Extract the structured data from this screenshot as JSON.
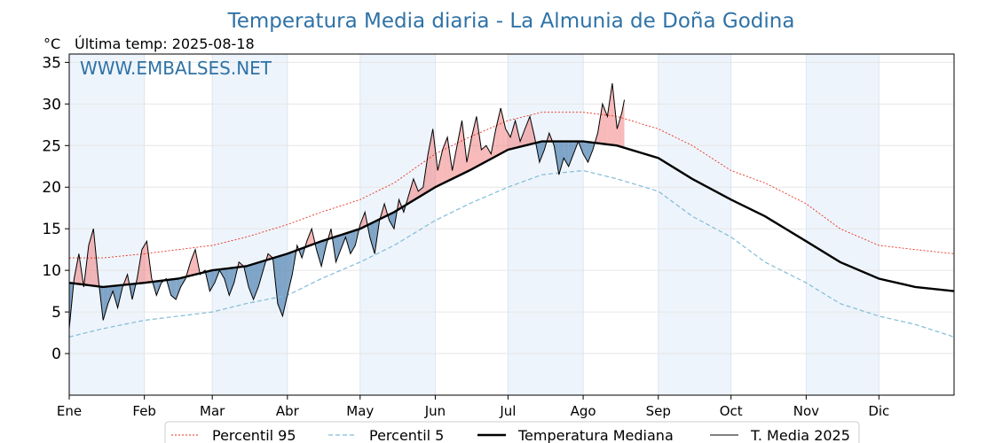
{
  "chart_data": {
    "type": "line",
    "title": "Temperatura Media diaria - La Almunia de Doña Godina",
    "unit_label": "°C",
    "last_temp_label": "Última temp: 2025-08-18",
    "watermark": "WWW.EMBALSES.NET",
    "ylim": [
      -5,
      36
    ],
    "yticks": [
      0,
      5,
      10,
      15,
      20,
      25,
      30,
      35
    ],
    "xlim": [
      1,
      366
    ],
    "month_labels": [
      "Ene",
      "Feb",
      "Mar",
      "Abr",
      "May",
      "Jun",
      "Jul",
      "Ago",
      "Sep",
      "Oct",
      "Nov",
      "Dic"
    ],
    "month_starts": [
      1,
      32,
      60,
      91,
      121,
      152,
      182,
      213,
      244,
      274,
      305,
      335
    ],
    "grid": true,
    "legend_position": "bottom",
    "colors": {
      "p95": "#e8321f",
      "p5": "#7fbcd8",
      "median": "#000000",
      "current": "#000000",
      "above": "#f08080",
      "below": "#4f81b0",
      "title": "#2f72a6",
      "band": "#eef4fb"
    },
    "x_day_of_year": [
      1,
      15,
      32,
      46,
      60,
      74,
      91,
      105,
      121,
      135,
      152,
      166,
      182,
      196,
      213,
      227,
      244,
      258,
      274,
      288,
      305,
      319,
      335,
      350,
      366
    ],
    "series": [
      {
        "name": "Percentil 95",
        "key": "p95",
        "values": [
          11.5,
          11.5,
          12.0,
          12.5,
          13.0,
          14.0,
          15.5,
          17.0,
          18.5,
          20.5,
          24.0,
          26.0,
          28.0,
          29.0,
          29.0,
          28.5,
          27.0,
          25.0,
          22.0,
          20.5,
          18.0,
          15.0,
          13.0,
          12.5,
          12.0
        ]
      },
      {
        "name": "Percentil 5",
        "key": "p5",
        "values": [
          2.0,
          3.0,
          4.0,
          4.5,
          5.0,
          6.0,
          7.0,
          9.0,
          11.0,
          13.0,
          16.0,
          18.0,
          20.0,
          21.5,
          22.0,
          21.0,
          19.5,
          16.5,
          14.0,
          11.0,
          8.5,
          6.0,
          4.5,
          3.5,
          2.0
        ]
      },
      {
        "name": "Temperatura Mediana",
        "key": "median",
        "values": [
          8.5,
          8.0,
          8.5,
          9.0,
          10.0,
          10.5,
          12.0,
          13.5,
          15.0,
          17.0,
          20.0,
          22.0,
          24.5,
          25.5,
          25.5,
          25.0,
          23.5,
          21.0,
          18.5,
          16.5,
          13.5,
          11.0,
          9.0,
          8.0,
          7.5
        ]
      },
      {
        "name": "T. Media 2025",
        "key": "current",
        "x": [
          1,
          3,
          5,
          7,
          9,
          11,
          13,
          15,
          17,
          19,
          21,
          23,
          25,
          27,
          29,
          31,
          33,
          35,
          37,
          39,
          41,
          43,
          45,
          47,
          49,
          51,
          53,
          55,
          57,
          59,
          61,
          63,
          65,
          67,
          69,
          71,
          73,
          75,
          77,
          79,
          81,
          83,
          85,
          87,
          89,
          91,
          93,
          95,
          97,
          99,
          101,
          103,
          105,
          107,
          109,
          111,
          113,
          115,
          117,
          119,
          121,
          123,
          125,
          127,
          129,
          131,
          133,
          135,
          137,
          139,
          141,
          143,
          145,
          147,
          149,
          151,
          153,
          155,
          157,
          159,
          161,
          163,
          165,
          167,
          169,
          171,
          173,
          175,
          177,
          179,
          181,
          183,
          185,
          187,
          189,
          191,
          193,
          195,
          197,
          199,
          201,
          203,
          205,
          207,
          209,
          211,
          213,
          215,
          217,
          219,
          221,
          223,
          225,
          227,
          229,
          230
        ],
        "values": [
          3.0,
          9.0,
          12.0,
          8.0,
          13.0,
          15.0,
          9.0,
          4.0,
          6.0,
          7.5,
          5.5,
          8.0,
          9.5,
          6.5,
          9.0,
          12.5,
          13.5,
          9.0,
          7.0,
          8.5,
          9.0,
          7.0,
          6.5,
          8.0,
          9.0,
          11.0,
          12.5,
          9.5,
          10.0,
          7.5,
          8.5,
          10.0,
          9.0,
          7.0,
          8.5,
          11.0,
          10.5,
          8.0,
          6.5,
          8.0,
          10.0,
          12.0,
          11.5,
          6.0,
          4.5,
          7.0,
          9.5,
          13.0,
          11.5,
          13.5,
          15.0,
          12.5,
          10.5,
          13.0,
          15.0,
          11.0,
          12.5,
          14.0,
          12.0,
          13.0,
          15.5,
          17.0,
          14.0,
          12.0,
          16.0,
          18.0,
          16.0,
          15.0,
          18.5,
          17.0,
          19.0,
          21.0,
          19.5,
          20.0,
          24.0,
          27.0,
          22.0,
          24.5,
          26.0,
          22.0,
          25.0,
          28.0,
          23.0,
          26.0,
          28.5,
          24.5,
          25.0,
          24.0,
          27.0,
          29.5,
          27.0,
          26.0,
          28.0,
          25.5,
          27.0,
          28.5,
          26.0,
          23.0,
          24.5,
          26.5,
          25.0,
          21.5,
          23.5,
          22.5,
          24.0,
          25.5,
          24.0,
          23.0,
          24.5,
          26.5,
          30.0,
          28.5,
          32.5,
          27.0,
          29.0,
          30.5
        ]
      }
    ]
  }
}
